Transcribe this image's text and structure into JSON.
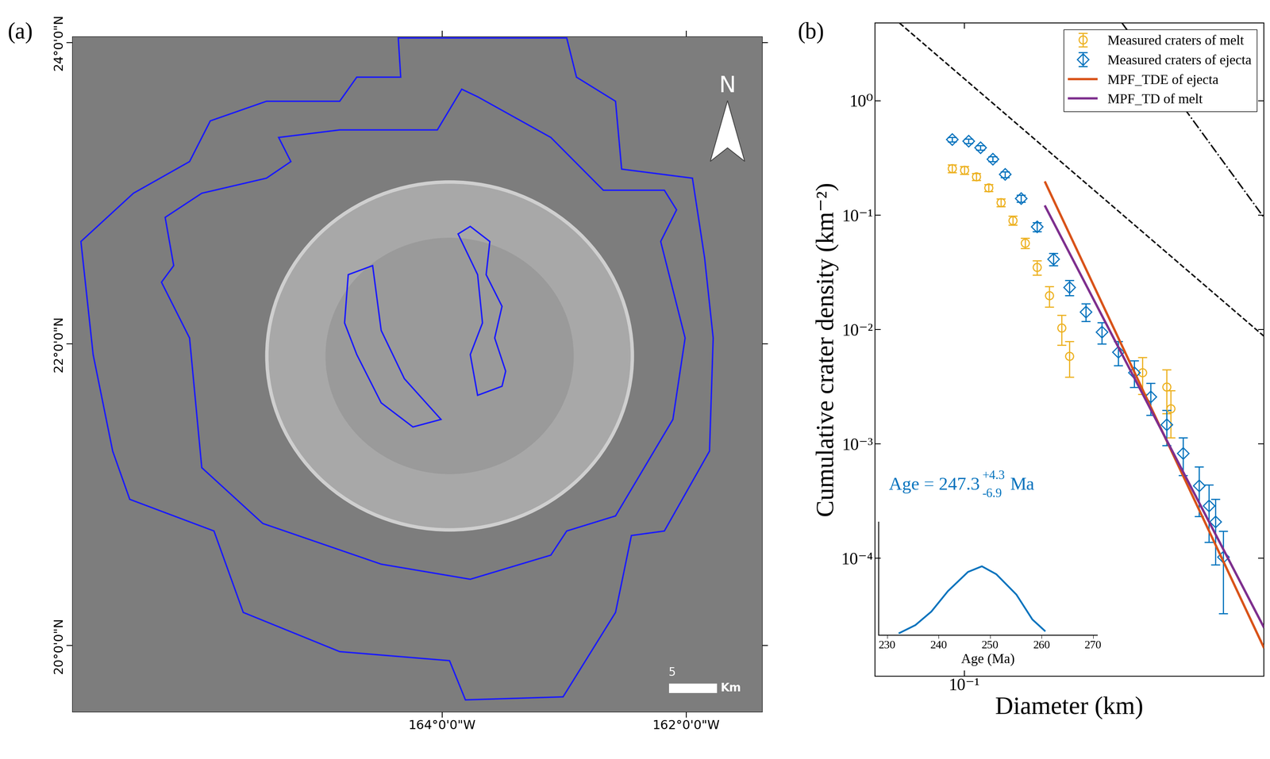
{
  "map": {
    "label": "(a)",
    "xlim": [
      -167.03,
      -161.38
    ],
    "ylim": [
      19.56,
      24.04
    ],
    "xticks": [
      {
        "value": -164,
        "label": "164°0'0\"W"
      },
      {
        "value": -162,
        "label": "162°0'0\"W"
      }
    ],
    "yticks": [
      {
        "value": 20,
        "label": "20°0'0\"N"
      },
      {
        "value": 22,
        "label": "22°0'0\"N"
      },
      {
        "value": 24,
        "label": "24°0'0\"N"
      }
    ],
    "north_label": "N",
    "scale_bar": {
      "value": 5,
      "unit": "Km"
    },
    "outline_color": "#1a1aff",
    "polygons": [
      [
        [
          -164.36,
          24.03
        ],
        [
          -162.98,
          24.03
        ],
        [
          -162.9,
          23.77
        ],
        [
          -162.58,
          23.61
        ],
        [
          -162.53,
          23.16
        ],
        [
          -161.95,
          23.1
        ],
        [
          -161.85,
          22.57
        ],
        [
          -161.78,
          22.04
        ],
        [
          -161.81,
          21.29
        ],
        [
          -162.18,
          20.76
        ],
        [
          -162.45,
          20.73
        ],
        [
          -162.58,
          20.22
        ],
        [
          -163.01,
          19.66
        ],
        [
          -163.81,
          19.64
        ],
        [
          -163.94,
          19.9
        ],
        [
          -164.84,
          19.96
        ],
        [
          -165.63,
          20.22
        ],
        [
          -165.87,
          20.76
        ],
        [
          -166.56,
          20.97
        ],
        [
          -166.7,
          21.29
        ],
        [
          -166.86,
          21.93
        ],
        [
          -166.96,
          22.68
        ],
        [
          -166.53,
          23.0
        ],
        [
          -166.07,
          23.21
        ],
        [
          -165.9,
          23.48
        ],
        [
          -165.44,
          23.61
        ],
        [
          -164.84,
          23.61
        ],
        [
          -164.7,
          23.77
        ],
        [
          -164.34,
          23.77
        ]
      ],
      [
        [
          -164.84,
          23.42
        ],
        [
          -164.04,
          23.42
        ],
        [
          -163.84,
          23.69
        ],
        [
          -163.71,
          23.64
        ],
        [
          -163.11,
          23.37
        ],
        [
          -162.68,
          23.02
        ],
        [
          -162.18,
          23.02
        ],
        [
          -162.08,
          22.89
        ],
        [
          -162.21,
          22.68
        ],
        [
          -162.01,
          22.04
        ],
        [
          -162.11,
          21.5
        ],
        [
          -162.58,
          20.86
        ],
        [
          -162.98,
          20.76
        ],
        [
          -163.11,
          20.6
        ],
        [
          -163.77,
          20.44
        ],
        [
          -164.5,
          20.54
        ],
        [
          -165.47,
          20.81
        ],
        [
          -165.97,
          21.18
        ],
        [
          -166.07,
          22.04
        ],
        [
          -166.3,
          22.41
        ],
        [
          -166.2,
          22.52
        ],
        [
          -166.27,
          22.84
        ],
        [
          -165.97,
          23.0
        ],
        [
          -165.44,
          23.1
        ],
        [
          -165.24,
          23.21
        ],
        [
          -165.34,
          23.37
        ]
      ],
      [
        [
          -164.77,
          22.46
        ],
        [
          -164.57,
          22.52
        ],
        [
          -164.5,
          22.09
        ],
        [
          -164.31,
          21.77
        ],
        [
          -164.01,
          21.5
        ],
        [
          -164.24,
          21.45
        ],
        [
          -164.5,
          21.61
        ],
        [
          -164.7,
          21.93
        ],
        [
          -164.8,
          22.14
        ]
      ],
      [
        [
          -163.87,
          22.73
        ],
        [
          -163.77,
          22.78
        ],
        [
          -163.61,
          22.68
        ],
        [
          -163.64,
          22.46
        ],
        [
          -163.51,
          22.25
        ],
        [
          -163.57,
          22.04
        ],
        [
          -163.48,
          21.82
        ],
        [
          -163.51,
          21.72
        ],
        [
          -163.71,
          21.66
        ],
        [
          -163.77,
          21.93
        ],
        [
          -163.67,
          22.14
        ],
        [
          -163.71,
          22.46
        ]
      ]
    ]
  },
  "chart_data": {
    "type": "scatter",
    "label": "(b)",
    "xlabel": "Diameter (km)",
    "ylabel": "Cumulative crater density (km⁻²)",
    "log": true,
    "legend": "upper right",
    "xlim": [
      0.053,
      0.84
    ],
    "ylim": [
      9.3e-06,
      4.8
    ],
    "xticks": [
      {
        "value": 0.1,
        "label": "10⁻¹"
      }
    ],
    "yticks": [
      {
        "value": 0.0001,
        "label": "10⁻⁴"
      },
      {
        "value": 0.001,
        "label": "10⁻³"
      },
      {
        "value": 0.01,
        "label": "10⁻²"
      },
      {
        "value": 0.1,
        "label": "10⁻¹"
      },
      {
        "value": 1,
        "label": "10⁰"
      }
    ],
    "series": [
      {
        "name": "Measured craters of melt",
        "type": "scatter",
        "marker": "circle",
        "color": "#edb120",
        "x": [
          0.0917,
          0.1,
          0.109,
          0.1189,
          0.1296,
          0.1413,
          0.154,
          0.1679,
          0.183,
          0.1995,
          0.2113,
          0.3548,
          0.4217,
          0.4341
        ],
        "values": [
          0.255,
          0.247,
          0.217,
          0.173,
          0.129,
          0.09,
          0.057,
          0.035,
          0.0198,
          0.0103,
          0.00585,
          0.00422,
          0.00315,
          0.00203
        ],
        "errors": [
          0.02,
          0.02,
          0.015,
          0.012,
          0.01,
          0.008,
          0.006,
          0.005,
          0.004,
          0.003,
          0.002,
          0.0015,
          0.0013,
          0.0009
        ]
      },
      {
        "name": "Measured craters of ejecta",
        "type": "scatter",
        "marker": "diamond",
        "color": "#0072bd",
        "x": [
          0.0917,
          0.1029,
          0.1122,
          0.1223,
          0.1334,
          0.1496,
          0.1679,
          0.1884,
          0.2113,
          0.2371,
          0.2661,
          0.2985,
          0.335,
          0.3758,
          0.4217,
          0.4732,
          0.5309,
          0.5689,
          0.5957,
          0.631
        ],
        "values": [
          0.458,
          0.443,
          0.389,
          0.31,
          0.227,
          0.14,
          0.079,
          0.0412,
          0.0233,
          0.0143,
          0.00952,
          0.00634,
          0.00422,
          0.00259,
          0.00147,
          0.00083,
          0.000432,
          0.000288,
          0.000208,
          0.000103
        ],
        "errors": [
          0.02,
          0.02,
          0.018,
          0.016,
          0.013,
          0.01,
          0.007,
          0.005,
          0.0035,
          0.0025,
          0.002,
          0.0015,
          0.0011,
          0.0008,
          0.0005,
          0.0003,
          0.0002,
          0.00015,
          0.00012,
          7e-05
        ]
      },
      {
        "name": "MPF_TDE of ejecta",
        "type": "line",
        "line_style": "solid",
        "color": "#d95319",
        "x": [
          0.1778,
          0.84
        ],
        "values": [
          0.193,
          1.67e-05
        ]
      },
      {
        "name": "MPF_TD of melt",
        "type": "line",
        "line_style": "solid",
        "color": "#7e2f8e",
        "x": [
          0.1778,
          0.84
        ],
        "values": [
          0.119,
          2.51e-05
        ]
      }
    ],
    "reference_lines": [
      {
        "x": [
          0.0631,
          0.84
        ],
        "values": [
          4.77,
          0.00878
        ],
        "line_style": "dashed",
        "color": "#000000"
      },
      {
        "x": [
          0.307,
          0.84
        ],
        "values": [
          4.77,
          0.096
        ],
        "line_style": "dashdot",
        "color": "#000000"
      }
    ],
    "age_text": {
      "main": "Age = 247.3",
      "upper": "+4.3",
      "lower": "-6.9",
      "unit": "Ma",
      "color": "#0072bd"
    },
    "inset": {
      "type": "line",
      "xlabel": "Age (Ma)",
      "color": "#0072bd",
      "tick_labels": "x",
      "xlim": [
        228.4,
        270.8
      ],
      "ylim": [
        0,
        1
      ],
      "xticks": [
        230,
        240,
        250,
        260,
        270
      ],
      "x": [
        232.4,
        235.5,
        238.6,
        241.8,
        245.7,
        248.4,
        251.2,
        255.1,
        258.2,
        260.6
      ],
      "values": [
        0.02,
        0.09,
        0.21,
        0.39,
        0.56,
        0.61,
        0.54,
        0.36,
        0.14,
        0.04
      ]
    }
  }
}
